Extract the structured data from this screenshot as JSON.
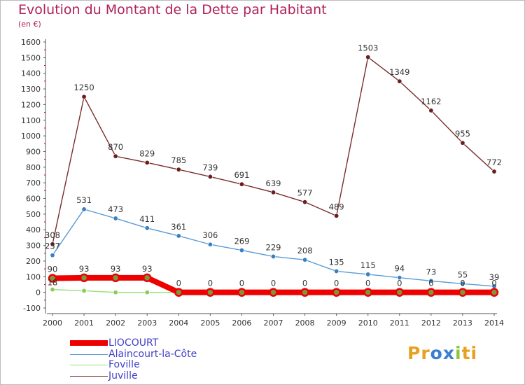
{
  "chart_data": {
    "type": "line",
    "title": "Evolution du Montant de la Dette par Habitant",
    "subtitle": "(en €)",
    "x": [
      "2000",
      "2001",
      "2002",
      "2003",
      "2004",
      "2005",
      "2006",
      "2007",
      "2008",
      "2009",
      "2010",
      "2011",
      "2012",
      "2013",
      "2014"
    ],
    "ylim": [
      -100,
      1600
    ],
    "yticks": [
      -100,
      0,
      100,
      200,
      300,
      400,
      500,
      600,
      700,
      800,
      900,
      1000,
      1100,
      1200,
      1300,
      1400,
      1500,
      1600
    ],
    "grid": false,
    "legend_position": "bottom-left",
    "series": [
      {
        "name": "LIOCOURT",
        "color": "#ee0000",
        "marker_fill": "#7a9640",
        "values": [
          90,
          93,
          93,
          93,
          0,
          0,
          0,
          0,
          0,
          0,
          0,
          0,
          0,
          0,
          0
        ],
        "labels": [
          "90",
          "93",
          "93",
          "93",
          "0",
          "0",
          "0",
          "0",
          "0",
          "0",
          "0",
          "0",
          "0",
          "0",
          "0"
        ]
      },
      {
        "name": "Alaincourt-la-Côte",
        "color": "#5b9bd5",
        "marker_fill": "#3a80c0",
        "values": [
          237,
          531,
          473,
          411,
          361,
          306,
          269,
          229,
          208,
          135,
          115,
          94,
          73,
          55,
          39
        ],
        "labels": [
          "237",
          "531",
          "473",
          "411",
          "361",
          "306",
          "269",
          "229",
          "208",
          "135",
          "115",
          "94",
          "73",
          "55",
          "39"
        ]
      },
      {
        "name": "Foville",
        "color": "#99e07a",
        "marker_fill": "#88cc55",
        "values": [
          18,
          10,
          0,
          0,
          0,
          0,
          0,
          0,
          0,
          0,
          0,
          0,
          0,
          0,
          0
        ],
        "labels": [
          "18",
          "",
          "",
          "",
          "",
          "",
          "",
          "",
          "",
          "",
          "",
          "",
          "",
          "",
          ""
        ]
      },
      {
        "name": "Juville",
        "color": "#7a2e2e",
        "marker_fill": "#6a1e1e",
        "values": [
          308,
          1250,
          870,
          829,
          785,
          739,
          691,
          639,
          577,
          489,
          1503,
          1349,
          1162,
          955,
          772
        ],
        "labels": [
          "308",
          "1250",
          "870",
          "829",
          "785",
          "739",
          "691",
          "639",
          "577",
          "489",
          "1503",
          "1349",
          "1162",
          "955",
          "772"
        ]
      }
    ]
  },
  "branding": {
    "logo_letters": [
      "P",
      "r",
      "o",
      "x",
      "i",
      "t",
      "i"
    ],
    "logo_colors": [
      "#e8a020",
      "#e8a020",
      "#3a7fd0",
      "#3a7fd0",
      "#8cc63e",
      "#e8a020",
      "#e8a020"
    ]
  }
}
